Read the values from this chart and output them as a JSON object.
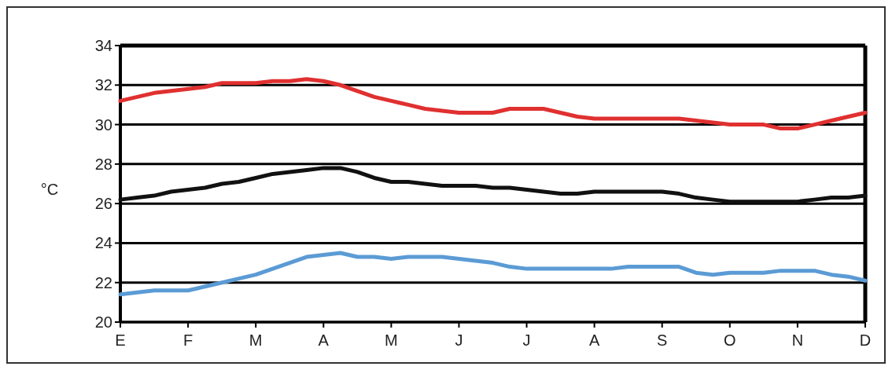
{
  "chart_data": {
    "type": "line",
    "ylabel": "°C",
    "categories": [
      "E",
      null,
      null,
      null,
      "F",
      null,
      null,
      null,
      "M",
      null,
      null,
      null,
      "A",
      null,
      null,
      null,
      "M",
      null,
      null,
      null,
      "J",
      null,
      null,
      null,
      "J",
      null,
      null,
      null,
      "A",
      null,
      null,
      null,
      "S",
      null,
      null,
      null,
      "O",
      null,
      null,
      null,
      "N",
      null,
      null,
      null,
      "D"
    ],
    "ylim": [
      20,
      34
    ],
    "yticks": [
      20,
      22,
      24,
      26,
      28,
      30,
      32,
      34
    ],
    "grid": "y",
    "line_style": "solid",
    "marker": "none",
    "series": [
      {
        "color": "#e03030",
        "values": [
          31.2,
          31.4,
          31.6,
          31.7,
          31.8,
          31.9,
          32.1,
          32.1,
          32.1,
          32.2,
          32.2,
          32.3,
          32.2,
          32.0,
          31.7,
          31.4,
          31.2,
          31.0,
          30.8,
          30.7,
          30.6,
          30.6,
          30.6,
          30.8,
          30.8,
          30.8,
          30.6,
          30.4,
          30.3,
          30.3,
          30.3,
          30.3,
          30.3,
          30.3,
          30.2,
          30.1,
          30.0,
          30.0,
          30.0,
          29.8,
          29.8,
          30.0,
          30.2,
          30.4,
          30.6
        ]
      },
      {
        "color": "#111111",
        "values": [
          26.2,
          26.3,
          26.4,
          26.6,
          26.7,
          26.8,
          27.0,
          27.1,
          27.3,
          27.5,
          27.6,
          27.7,
          27.8,
          27.8,
          27.6,
          27.3,
          27.1,
          27.1,
          27.0,
          26.9,
          26.9,
          26.9,
          26.8,
          26.8,
          26.7,
          26.6,
          26.5,
          26.5,
          26.6,
          26.6,
          26.6,
          26.6,
          26.6,
          26.5,
          26.3,
          26.2,
          26.1,
          26.1,
          26.1,
          26.1,
          26.1,
          26.2,
          26.3,
          26.3,
          26.4
        ]
      },
      {
        "color": "#5b9bd5",
        "values": [
          21.4,
          21.5,
          21.6,
          21.6,
          21.6,
          21.8,
          22.0,
          22.2,
          22.4,
          22.7,
          23.0,
          23.3,
          23.4,
          23.5,
          23.3,
          23.3,
          23.2,
          23.3,
          23.3,
          23.3,
          23.2,
          23.1,
          23.0,
          22.8,
          22.7,
          22.7,
          22.7,
          22.7,
          22.7,
          22.7,
          22.8,
          22.8,
          22.8,
          22.8,
          22.5,
          22.4,
          22.5,
          22.5,
          22.5,
          22.6,
          22.6,
          22.6,
          22.4,
          22.3,
          22.1
        ]
      }
    ]
  }
}
